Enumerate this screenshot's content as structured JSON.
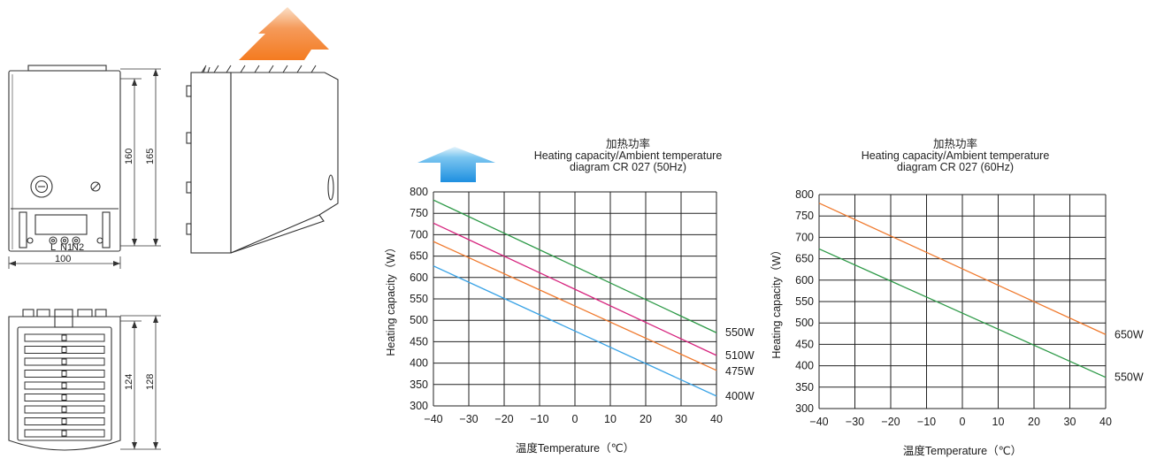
{
  "drawings": {
    "front_width": "100",
    "front_inner_height": "160",
    "front_outer_height": "165",
    "bottom_inner_height": "124",
    "bottom_outer_height": "128",
    "terminal_labels": [
      "L",
      "N1",
      "N2"
    ],
    "arrow_colors": {
      "hot": "#f07a2e",
      "cool": "#3aa3e6"
    }
  },
  "chart_data": [
    {
      "type": "line",
      "title_cn": "加热功率",
      "title": "Heating capacity/Ambient temperature",
      "subtitle": "diagram CR 027 (50Hz)",
      "xlabel": "温度Temperature（℃）",
      "ylabel": "Heating capacity（W）",
      "xlim": [
        -40,
        40
      ],
      "ylim": [
        300,
        800
      ],
      "xticks": [
        -40,
        -30,
        -20,
        -10,
        0,
        10,
        20,
        30,
        40
      ],
      "yticks": [
        300,
        350,
        400,
        450,
        500,
        550,
        600,
        650,
        700,
        750,
        800
      ],
      "grid": true,
      "series": [
        {
          "name": "550W",
          "color": "#2e9a48",
          "x": [
            -40,
            40
          ],
          "values": [
            781,
            471
          ]
        },
        {
          "name": "510W",
          "color": "#d6247e",
          "x": [
            -40,
            40
          ],
          "values": [
            727,
            418
          ]
        },
        {
          "name": "475W",
          "color": "#f07a2e",
          "x": [
            -40,
            40
          ],
          "values": [
            684,
            383
          ]
        },
        {
          "name": "400W",
          "color": "#3aa3e6",
          "x": [
            -40,
            40
          ],
          "values": [
            627,
            323
          ]
        }
      ]
    },
    {
      "type": "line",
      "title_cn": "加热功率",
      "title": "Heating capacity/Ambient temperature",
      "subtitle": "diagram CR 027 (60Hz)",
      "xlabel": "温度Temperature（℃）",
      "ylabel": "Heating capacity（W）",
      "xlim": [
        -40,
        40
      ],
      "ylim": [
        300,
        800
      ],
      "xticks": [
        -40,
        -30,
        -20,
        -10,
        0,
        10,
        20,
        30,
        40
      ],
      "yticks": [
        300,
        350,
        400,
        450,
        500,
        550,
        600,
        650,
        700,
        750,
        800
      ],
      "grid": true,
      "series": [
        {
          "name": "650W",
          "color": "#f07a2e",
          "x": [
            -40,
            40
          ],
          "values": [
            780,
            473
          ]
        },
        {
          "name": "550W",
          "color": "#2e9a48",
          "x": [
            -40,
            40
          ],
          "values": [
            673,
            373
          ]
        }
      ]
    }
  ]
}
